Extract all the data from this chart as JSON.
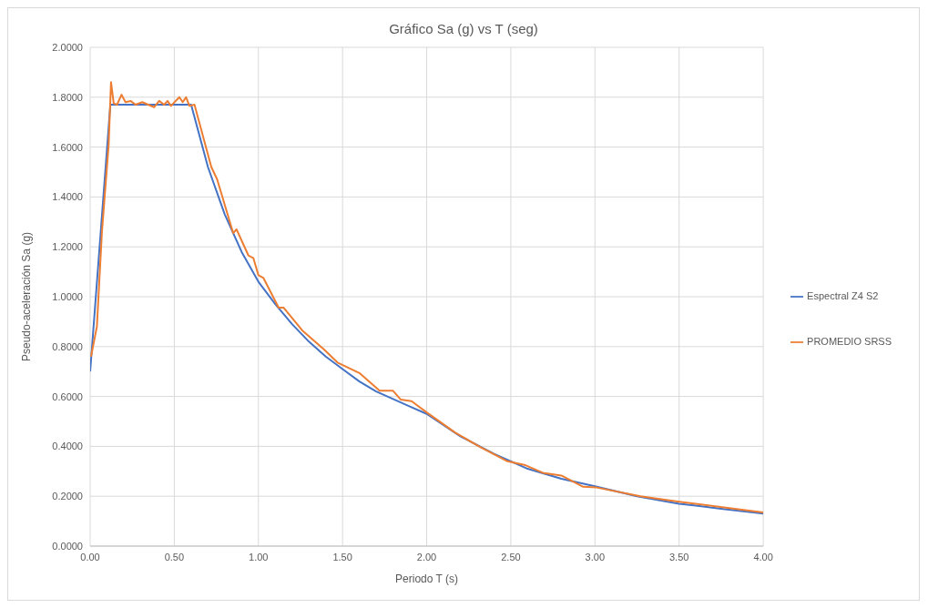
{
  "chart_data": {
    "type": "line",
    "title": "Gráfico Sa (g) vs T (seg)",
    "xlabel": "Periodo T (s)",
    "ylabel": "Pseudo-aceleración Sa (g)",
    "xlim": [
      0,
      4
    ],
    "ylim": [
      0,
      2
    ],
    "xticks": [
      {
        "value": 0,
        "label": "0.00"
      },
      {
        "value": 0.5,
        "label": "0.50"
      },
      {
        "value": 1,
        "label": "1.00"
      },
      {
        "value": 1.5,
        "label": "1.50"
      },
      {
        "value": 2,
        "label": "2.00"
      },
      {
        "value": 2.5,
        "label": "2.50"
      },
      {
        "value": 3,
        "label": "3.00"
      },
      {
        "value": 3.5,
        "label": "3.50"
      },
      {
        "value": 4,
        "label": "4.00"
      }
    ],
    "yticks": [
      {
        "value": 0,
        "label": "0.0000"
      },
      {
        "value": 0.2,
        "label": "0.2000"
      },
      {
        "value": 0.4,
        "label": "0.4000"
      },
      {
        "value": 0.6,
        "label": "0.6000"
      },
      {
        "value": 0.8,
        "label": "0.8000"
      },
      {
        "value": 1,
        "label": "1.0000"
      },
      {
        "value": 1.2,
        "label": "1.2000"
      },
      {
        "value": 1.4,
        "label": "1.4000"
      },
      {
        "value": 1.6,
        "label": "1.6000"
      },
      {
        "value": 1.8,
        "label": "1.8000"
      },
      {
        "value": 2,
        "label": "2.0000"
      }
    ],
    "grid": true,
    "legend": "right",
    "marker": "none",
    "line_style": "solid",
    "series": [
      {
        "name": "Espectral Z4 S2",
        "color": "#4472c4",
        "x": [
          0,
          0.12,
          0.6,
          0.7,
          0.8,
          0.9,
          1.0,
          1.1,
          1.2,
          1.3,
          1.4,
          1.5,
          1.6,
          1.7,
          1.8,
          1.9,
          2.0,
          2.2,
          2.4,
          2.6,
          2.8,
          3.0,
          3.25,
          3.5,
          3.75,
          4.0
        ],
        "values": [
          0.7,
          1.77,
          1.77,
          1.52,
          1.33,
          1.18,
          1.06,
          0.97,
          0.89,
          0.82,
          0.76,
          0.71,
          0.66,
          0.62,
          0.59,
          0.56,
          0.53,
          0.44,
          0.37,
          0.31,
          0.27,
          0.24,
          0.2,
          0.17,
          0.15,
          0.13
        ]
      },
      {
        "name": "PROMEDIO SRSS",
        "color": "#ed7d31",
        "x": [
          0.005,
          0.04,
          0.07,
          0.11,
          0.124,
          0.14,
          0.16,
          0.186,
          0.21,
          0.24,
          0.27,
          0.31,
          0.38,
          0.41,
          0.44,
          0.46,
          0.48,
          0.53,
          0.55,
          0.57,
          0.59,
          0.62,
          0.67,
          0.72,
          0.755,
          0.85,
          0.87,
          0.94,
          0.97,
          1.0,
          1.03,
          1.12,
          1.15,
          1.26,
          1.39,
          1.47,
          1.6,
          1.72,
          1.8,
          1.845,
          1.91,
          2.0,
          2.17,
          2.31,
          2.48,
          2.58,
          2.69,
          2.8,
          2.93,
          3.01,
          3.27,
          3.5,
          4.0
        ],
        "values": [
          0.76,
          0.88,
          1.26,
          1.61,
          1.86,
          1.775,
          1.77,
          1.81,
          1.78,
          1.785,
          1.77,
          1.78,
          1.76,
          1.785,
          1.77,
          1.785,
          1.765,
          1.8,
          1.78,
          1.8,
          1.765,
          1.77,
          1.645,
          1.52,
          1.47,
          1.255,
          1.27,
          1.166,
          1.155,
          1.086,
          1.075,
          0.956,
          0.956,
          0.865,
          0.788,
          0.736,
          0.694,
          0.623,
          0.623,
          0.588,
          0.581,
          0.536,
          0.455,
          0.4,
          0.34,
          0.326,
          0.294,
          0.283,
          0.238,
          0.235,
          0.2,
          0.178,
          0.135
        ]
      }
    ]
  }
}
